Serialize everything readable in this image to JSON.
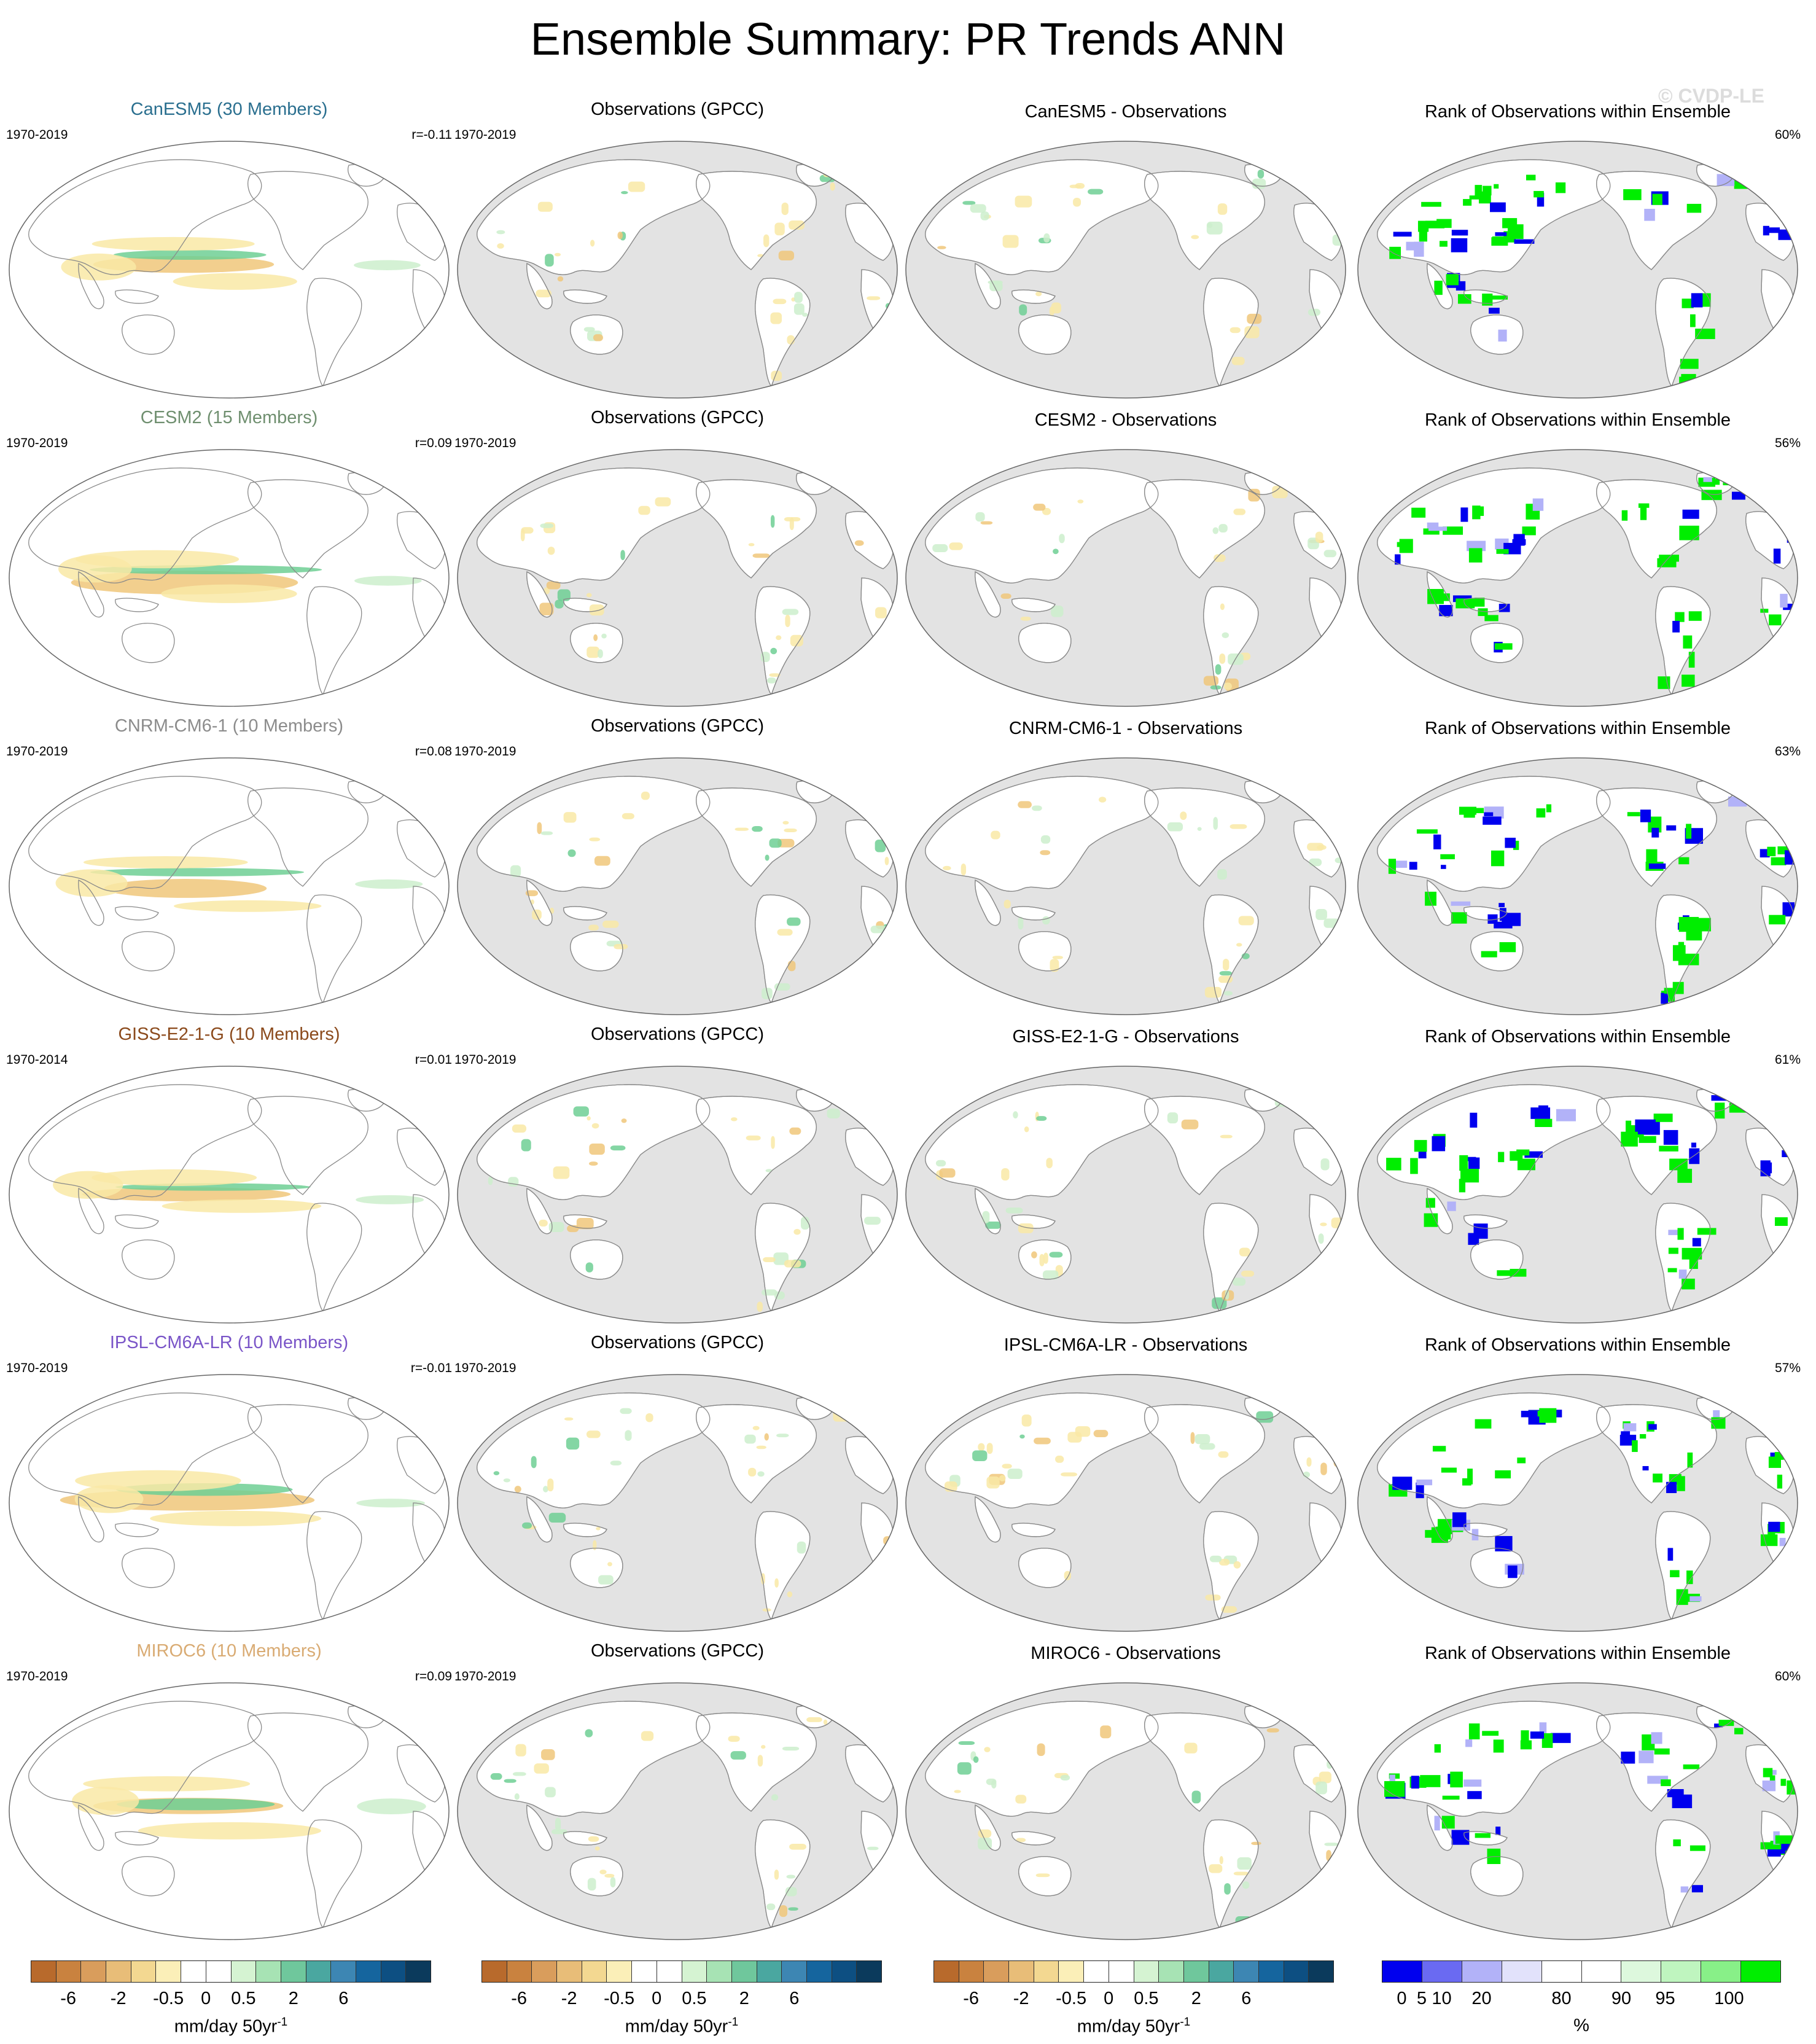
{
  "title": "Ensemble Summary: PR Trends ANN",
  "watermark": "© CVDP-LE",
  "obs_title": "Observations (GPCC)",
  "obs_period": "1970-2019",
  "rank_title": "Rank of Observations within Ensemble",
  "colors": {
    "ocean_gray": "#e3e3e3",
    "outline": "#8a8a8a",
    "dry_pale": "#f9e9a6",
    "dry_mid": "#f0c77a",
    "wet_pale": "#cdefcd",
    "wet_mid": "#6fcf94",
    "rank_low": "#0000ee",
    "rank_high": "#00ee00"
  },
  "rows": [
    {
      "model": "CanESM5 (30 Members)",
      "model_color": "#2a6f8f",
      "period": "1970-2019",
      "corr": "r=-0.11",
      "diff_title": "CanESM5 - Observations",
      "rank_pct": "60%"
    },
    {
      "model": "CESM2 (15 Members)",
      "model_color": "#6f8f6f",
      "period": "1970-2019",
      "corr": "r=0.09",
      "diff_title": "CESM2 - Observations",
      "rank_pct": "56%"
    },
    {
      "model": "CNRM-CM6-1 (10 Members)",
      "model_color": "#8c8c8c",
      "period": "1970-2019",
      "corr": "r=0.08",
      "diff_title": "CNRM-CM6-1 - Observations",
      "rank_pct": "63%"
    },
    {
      "model": "GISS-E2-1-G (10 Members)",
      "model_color": "#8b4a1c",
      "period": "1970-2014",
      "corr": "r=0.01",
      "diff_title": "GISS-E2-1-G - Observations",
      "rank_pct": "61%"
    },
    {
      "model": "IPSL-CM6A-LR (10 Members)",
      "model_color": "#7a55c8",
      "period": "1970-2019",
      "corr": "r=-0.01",
      "diff_title": "IPSL-CM6A-LR - Observations",
      "rank_pct": "57%"
    },
    {
      "model": "MIROC6 (10 Members)",
      "model_color": "#d9ab73",
      "period": "1970-2019",
      "corr": "r=0.09",
      "diff_title": "MIROC6 - Observations",
      "rank_pct": "60%"
    }
  ],
  "colorbars": {
    "trend": {
      "colors": [
        "#b86a2c",
        "#c9823f",
        "#d99d5c",
        "#e8bd78",
        "#f3d891",
        "#fbefb8",
        "#ffffff",
        "#ffffff",
        "#d5f3d2",
        "#a7e3b4",
        "#6fc79c",
        "#4aa7a0",
        "#3d86b3",
        "#15659e",
        "#0d4f82",
        "#0b3a5c"
      ],
      "ticks": [
        "-6",
        "-2",
        "-0.5",
        "0",
        "0.5",
        "2",
        "6"
      ],
      "tick_positions": [
        1.5,
        3.5,
        5.5,
        7,
        8.5,
        10.5,
        12.5
      ],
      "label": "mm/day 50yr",
      "label_sup": "-1"
    },
    "rank": {
      "colors": [
        "#0000ee",
        "#6a6af2",
        "#b2b2f8",
        "#e2e2fb",
        "#ffffff",
        "#ffffff",
        "#ddf8dd",
        "#bff5bf",
        "#88f088",
        "#00ee00"
      ],
      "ticks": [
        "0",
        "5",
        "10",
        "20",
        "80",
        "90",
        "95",
        "100"
      ],
      "tick_positions": [
        0.5,
        1,
        1.5,
        2.5,
        4.5,
        6,
        7.1,
        8.7
      ],
      "label": "%"
    }
  }
}
